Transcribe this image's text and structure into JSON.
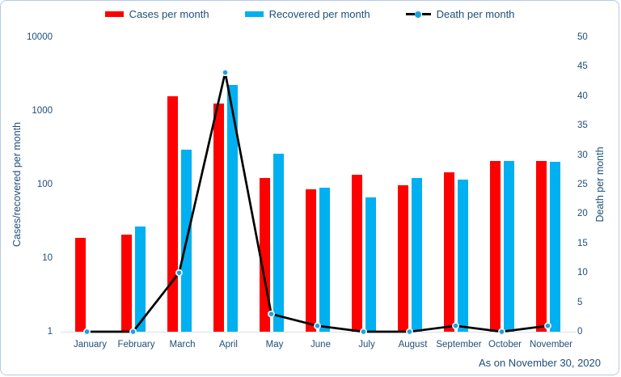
{
  "footer": "As on November 30, 2020",
  "legend": [
    {
      "label": "Cases per month",
      "type": "bar",
      "color": "#FF0000"
    },
    {
      "label": "Recovered per month",
      "type": "bar",
      "color": "#00B0F0"
    },
    {
      "label": "Death per month",
      "type": "line",
      "color": "#000000",
      "marker_color": "#1BA1DC"
    }
  ],
  "colors": {
    "cases": "#FF0000",
    "recovered": "#00B0F0",
    "death_line": "#000000",
    "death_marker": "#1BA1DC",
    "death_marker_ring": "#eef6fc",
    "text": "#1F4E79",
    "baseline": "#d9e1ec"
  },
  "chart_data": {
    "type": "combo",
    "categories": [
      "January",
      "February",
      "March",
      "April",
      "May",
      "June",
      "July",
      "August",
      "September",
      "October",
      "November"
    ],
    "series": [
      {
        "name": "Cases per month",
        "type": "bar",
        "axis": "left",
        "color": "#FF0000",
        "values": [
          19,
          21,
          1580,
          1250,
          122,
          86,
          135,
          98,
          146,
          208,
          208
        ]
      },
      {
        "name": "Recovered per month",
        "type": "bar",
        "axis": "left",
        "color": "#00B0F0",
        "values": [
          0,
          27,
          300,
          2250,
          262,
          90,
          67,
          122,
          116,
          208,
          203
        ]
      },
      {
        "name": "Death per month",
        "type": "line",
        "axis": "right",
        "color": "#000000",
        "values": [
          0,
          0,
          10,
          44,
          3,
          1,
          0,
          0,
          1,
          0,
          1
        ]
      }
    ],
    "left_axis": {
      "label": "Cases/recovered per month",
      "scale": "log",
      "ticks": [
        1,
        10,
        100,
        1000,
        10000
      ],
      "range": [
        1,
        10000
      ]
    },
    "right_axis": {
      "label": "Death per month",
      "scale": "linear",
      "ticks": [
        0,
        5,
        10,
        15,
        20,
        25,
        30,
        35,
        40,
        45,
        50
      ],
      "range": [
        0,
        50
      ]
    },
    "grid": false,
    "legend_position": "top"
  }
}
